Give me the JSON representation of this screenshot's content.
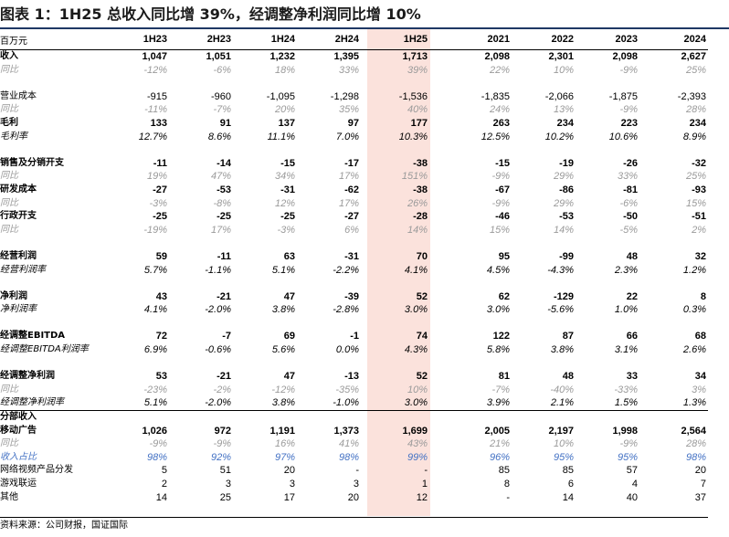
{
  "title": "图表 1：1H25 总收入同比增 39%，经调整净利润同比增 10%",
  "unit_label": "百万元",
  "columns": [
    "1H23",
    "2H23",
    "1H24",
    "2H24",
    "1H25",
    "2021",
    "2022",
    "2023",
    "2024"
  ],
  "highlight_color": "#fbe2dc",
  "rows": [
    {
      "label": "收入",
      "style": "bold",
      "values": [
        "1,047",
        "1,051",
        "1,232",
        "1,395",
        "1,713",
        "2,098",
        "2,301",
        "2,098",
        "2,627"
      ]
    },
    {
      "label": "同比",
      "style": "sub",
      "values": [
        "-12%",
        "-6%",
        "18%",
        "33%",
        "39%",
        "22%",
        "10%",
        "-9%",
        "25%"
      ]
    },
    {
      "label": "",
      "style": "spacer",
      "values": [
        "",
        "",
        "",
        "",
        "",
        "",
        "",
        "",
        ""
      ]
    },
    {
      "label": "营业成本",
      "style": "normal",
      "values": [
        "-915",
        "-960",
        "-1,095",
        "-1,298",
        "-1,536",
        "-1,835",
        "-2,066",
        "-1,875",
        "-2,393"
      ]
    },
    {
      "label": "同比",
      "style": "sub",
      "values": [
        "-11%",
        "-7%",
        "20%",
        "35%",
        "40%",
        "24%",
        "13%",
        "-9%",
        "28%"
      ]
    },
    {
      "label": "毛利",
      "style": "bold",
      "values": [
        "133",
        "91",
        "137",
        "97",
        "177",
        "263",
        "234",
        "223",
        "234"
      ]
    },
    {
      "label": "毛利率",
      "style": "pct",
      "values": [
        "12.7%",
        "8.6%",
        "11.1%",
        "7.0%",
        "10.3%",
        "12.5%",
        "10.2%",
        "10.6%",
        "8.9%"
      ]
    },
    {
      "label": "",
      "style": "spacer",
      "values": [
        "",
        "",
        "",
        "",
        "",
        "",
        "",
        "",
        ""
      ]
    },
    {
      "label": "销售及分销开支",
      "style": "bold",
      "values": [
        "-11",
        "-14",
        "-15",
        "-17",
        "-38",
        "-15",
        "-19",
        "-26",
        "-32"
      ]
    },
    {
      "label": "同比",
      "style": "sub",
      "values": [
        "19%",
        "47%",
        "34%",
        "17%",
        "151%",
        "-9%",
        "29%",
        "33%",
        "25%"
      ]
    },
    {
      "label": "研发成本",
      "style": "bold",
      "values": [
        "-27",
        "-53",
        "-31",
        "-62",
        "-38",
        "-67",
        "-86",
        "-81",
        "-93"
      ]
    },
    {
      "label": "同比",
      "style": "sub",
      "values": [
        "-3%",
        "-8%",
        "12%",
        "17%",
        "26%",
        "-9%",
        "29%",
        "-6%",
        "15%"
      ]
    },
    {
      "label": "行政开支",
      "style": "bold",
      "values": [
        "-25",
        "-25",
        "-25",
        "-27",
        "-28",
        "-46",
        "-53",
        "-50",
        "-51"
      ]
    },
    {
      "label": "同比",
      "style": "sub",
      "values": [
        "-19%",
        "17%",
        "-3%",
        "6%",
        "14%",
        "15%",
        "14%",
        "-5%",
        "2%"
      ]
    },
    {
      "label": "",
      "style": "spacer",
      "values": [
        "",
        "",
        "",
        "",
        "",
        "",
        "",
        "",
        ""
      ]
    },
    {
      "label": "经营利润",
      "style": "bold",
      "values": [
        "59",
        "-11",
        "63",
        "-31",
        "70",
        "95",
        "-99",
        "48",
        "32"
      ]
    },
    {
      "label": "经营利润率",
      "style": "pct",
      "values": [
        "5.7%",
        "-1.1%",
        "5.1%",
        "-2.2%",
        "4.1%",
        "4.5%",
        "-4.3%",
        "2.3%",
        "1.2%"
      ]
    },
    {
      "label": "",
      "style": "spacer",
      "values": [
        "",
        "",
        "",
        "",
        "",
        "",
        "",
        "",
        ""
      ]
    },
    {
      "label": "净利润",
      "style": "bold",
      "values": [
        "43",
        "-21",
        "47",
        "-39",
        "52",
        "62",
        "-129",
        "22",
        "8"
      ]
    },
    {
      "label": "净利润率",
      "style": "pct",
      "values": [
        "4.1%",
        "-2.0%",
        "3.8%",
        "-2.8%",
        "3.0%",
        "3.0%",
        "-5.6%",
        "1.0%",
        "0.3%"
      ]
    },
    {
      "label": "",
      "style": "spacer",
      "values": [
        "",
        "",
        "",
        "",
        "",
        "",
        "",
        "",
        ""
      ]
    },
    {
      "label": "经调整EBITDA",
      "style": "bold",
      "values": [
        "72",
        "-7",
        "69",
        "-1",
        "74",
        "122",
        "87",
        "66",
        "68"
      ]
    },
    {
      "label": "经调整EBITDA利润率",
      "style": "pct",
      "values": [
        "6.9%",
        "-0.6%",
        "5.6%",
        "0.0%",
        "4.3%",
        "5.8%",
        "3.8%",
        "3.1%",
        "2.6%"
      ]
    },
    {
      "label": "",
      "style": "spacer",
      "values": [
        "",
        "",
        "",
        "",
        "",
        "",
        "",
        "",
        ""
      ]
    },
    {
      "label": "经调整净利润",
      "style": "bold",
      "values": [
        "53",
        "-21",
        "47",
        "-13",
        "52",
        "81",
        "48",
        "33",
        "34"
      ]
    },
    {
      "label": "同比",
      "style": "sub",
      "values": [
        "-23%",
        "-2%",
        "-12%",
        "-35%",
        "10%",
        "-7%",
        "-40%",
        "-33%",
        "3%"
      ]
    },
    {
      "label": "经调整净利润率",
      "style": "pct sep",
      "values": [
        "5.1%",
        "-2.0%",
        "3.8%",
        "-1.0%",
        "3.0%",
        "3.9%",
        "2.1%",
        "1.5%",
        "1.3%"
      ]
    },
    {
      "label": "分部收入",
      "style": "bold",
      "values": [
        "",
        "",
        "",
        "",
        "",
        "",
        "",
        "",
        ""
      ]
    },
    {
      "label": "移动广告",
      "style": "bold",
      "values": [
        "1,026",
        "972",
        "1,191",
        "1,373",
        "1,699",
        "2,005",
        "2,197",
        "1,998",
        "2,564"
      ]
    },
    {
      "label": "同比",
      "style": "sub",
      "values": [
        "-9%",
        "-9%",
        "16%",
        "41%",
        "43%",
        "21%",
        "10%",
        "-9%",
        "28%"
      ]
    },
    {
      "label": "收入占比",
      "style": "blue",
      "values": [
        "98%",
        "92%",
        "97%",
        "98%",
        "99%",
        "96%",
        "95%",
        "95%",
        "98%"
      ]
    },
    {
      "label": "网络视频产品分发",
      "style": "normal",
      "values": [
        "5",
        "51",
        "20",
        "-",
        "-",
        "85",
        "85",
        "57",
        "20"
      ]
    },
    {
      "label": "游戏联运",
      "style": "normal",
      "values": [
        "2",
        "3",
        "3",
        "3",
        "1",
        "8",
        "6",
        "4",
        "7"
      ]
    },
    {
      "label": "其他",
      "style": "normal",
      "values": [
        "14",
        "25",
        "17",
        "20",
        "12",
        "-",
        "14",
        "40",
        "37"
      ]
    }
  ],
  "source": "资料来源：公司财报，国证国际"
}
